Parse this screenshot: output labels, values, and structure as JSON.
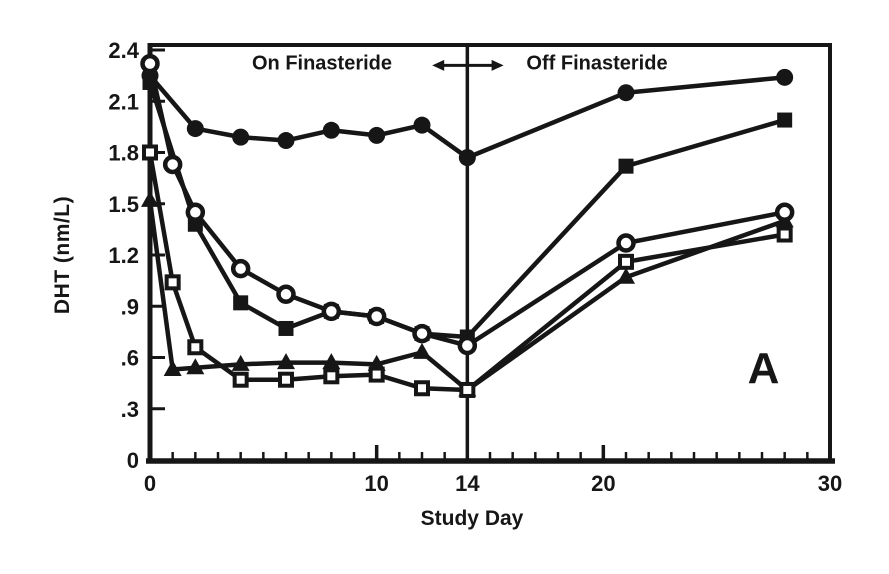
{
  "figure": {
    "panel_label": "A",
    "on_period_label": "On Finasteride",
    "off_period_label": "Off Finasteride",
    "background_color": "#ffffff",
    "ink_color": "#161616"
  },
  "chart_data": {
    "type": "line",
    "title": "",
    "xlabel": "Study Day",
    "ylabel": "DHT (nm/L)",
    "xlim": [
      0,
      30
    ],
    "ylim": [
      0,
      2.4
    ],
    "grid": false,
    "legend": "none",
    "frame_box": true,
    "ink_color": "#161616",
    "x_minor_tick_step": 1,
    "x_major_ticks": [
      10,
      20
    ],
    "x_tick_labels": [
      {
        "value": 0,
        "label": "0"
      },
      {
        "value": 10,
        "label": "10"
      },
      {
        "value": 14,
        "label": "14"
      },
      {
        "value": 20,
        "label": "20"
      },
      {
        "value": 30,
        "label": "30"
      }
    ],
    "y_ticks": [
      {
        "value": 0,
        "label": "0"
      },
      {
        "value": 0.3,
        "label": ".3"
      },
      {
        "value": 0.6,
        "label": ".6"
      },
      {
        "value": 0.9,
        "label": ".9"
      },
      {
        "value": 1.2,
        "label": "1.2"
      },
      {
        "value": 1.5,
        "label": "1.5"
      },
      {
        "value": 1.8,
        "label": "1.8"
      },
      {
        "value": 2.1,
        "label": "2.1"
      },
      {
        "value": 2.4,
        "label": "2.4"
      }
    ],
    "phase_divider_day": 14,
    "phase_arrow": {
      "style": "double-headed",
      "y_value": 2.31,
      "x_from_day": 12.45,
      "x_to_day": 15.6
    },
    "series": [
      {
        "name": "filled circle",
        "marker": "filled-circle",
        "points": [
          [
            0,
            2.25
          ],
          [
            2,
            1.94
          ],
          [
            4,
            1.89
          ],
          [
            6,
            1.87
          ],
          [
            8,
            1.93
          ],
          [
            10,
            1.9
          ],
          [
            12,
            1.96
          ],
          [
            14,
            1.77
          ],
          [
            21,
            2.15
          ],
          [
            28,
            2.24
          ]
        ]
      },
      {
        "name": "filled square",
        "marker": "filled-square",
        "points": [
          [
            0,
            2.21
          ],
          [
            2,
            1.38
          ],
          [
            4,
            0.92
          ],
          [
            6,
            0.77
          ],
          [
            8,
            0.87
          ],
          [
            10,
            0.84
          ],
          [
            12,
            0.74
          ],
          [
            14,
            0.72
          ],
          [
            21,
            1.72
          ],
          [
            28,
            1.99
          ]
        ]
      },
      {
        "name": "filled triangle",
        "marker": "filled-triangle",
        "points": [
          [
            0,
            1.52
          ],
          [
            1,
            0.53
          ],
          [
            2,
            0.54
          ],
          [
            4,
            0.56
          ],
          [
            6,
            0.57
          ],
          [
            8,
            0.57
          ],
          [
            10,
            0.56
          ],
          [
            12,
            0.63
          ],
          [
            14,
            0.41
          ],
          [
            21,
            1.07
          ],
          [
            28,
            1.4
          ]
        ]
      },
      {
        "name": "open square",
        "marker": "open-square",
        "points": [
          [
            0,
            1.8
          ],
          [
            1,
            1.04
          ],
          [
            2,
            0.66
          ],
          [
            4,
            0.47
          ],
          [
            6,
            0.47
          ],
          [
            8,
            0.49
          ],
          [
            10,
            0.5
          ],
          [
            12,
            0.42
          ],
          [
            14,
            0.41
          ],
          [
            21,
            1.16
          ],
          [
            28,
            1.32
          ]
        ]
      },
      {
        "name": "open circle",
        "marker": "open-circle",
        "points": [
          [
            0,
            2.32
          ],
          [
            1,
            1.73
          ],
          [
            2,
            1.45
          ],
          [
            4,
            1.12
          ],
          [
            6,
            0.97
          ],
          [
            8,
            0.87
          ],
          [
            10,
            0.84
          ],
          [
            12,
            0.74
          ],
          [
            14,
            0.67
          ],
          [
            21,
            1.27
          ],
          [
            28,
            1.45
          ]
        ]
      }
    ]
  }
}
